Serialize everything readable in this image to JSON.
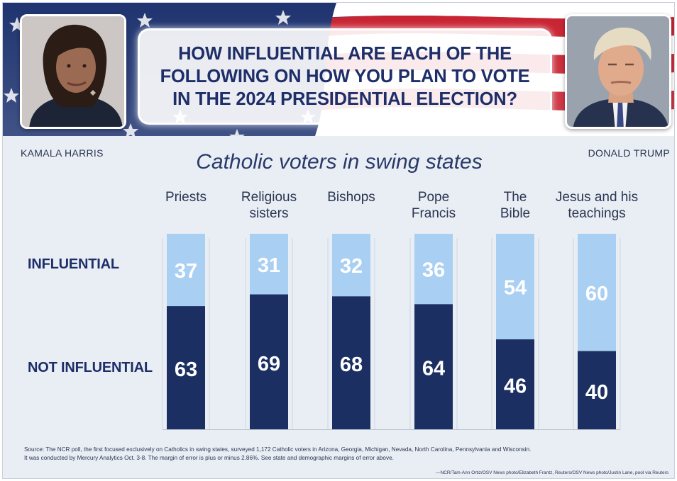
{
  "header": {
    "question_lines": [
      "HOW INFLUENTIAL ARE EACH OF THE",
      "FOLLOWING ON HOW YOU PLAN TO VOTE",
      "IN THE 2024 PRESIDENTIAL ELECTION?"
    ],
    "left_name": "KAMALA HARRIS",
    "right_name": "DONALD TRUMP"
  },
  "colors": {
    "influential": "#a9cff2",
    "not_influential": "#1b2f62",
    "navy_text": "#1d2e68",
    "flag_red": "#c8202f",
    "flag_blue": "#1c2f66"
  },
  "chart_data": {
    "type": "bar",
    "stacked": true,
    "percent": true,
    "subtitle": "Catholic voters in swing states",
    "categories": [
      [
        "Priests"
      ],
      [
        "Religious",
        "sisters"
      ],
      [
        "Bishops"
      ],
      [
        "Pope",
        "Francis"
      ],
      [
        "The",
        "Bible"
      ],
      [
        "Jesus and his",
        "teachings"
      ]
    ],
    "series": [
      {
        "name": "INFLUENTIAL",
        "values": [
          37,
          31,
          32,
          36,
          54,
          60
        ]
      },
      {
        "name": "NOT INFLUENTIAL",
        "values": [
          63,
          69,
          68,
          64,
          46,
          40
        ]
      }
    ],
    "ylim": [
      0,
      100
    ]
  },
  "footer": {
    "source_lines": [
      "Source: The NCR poll, the first focused exclusively on Catholics in swing states, surveyed 1,172 Catholic voters in Arizona, Georgia, Michigan, Nevada, North Carolina, Pennsylvania and Wisconsin.",
      "It was conducted by Mercury Analytics Oct. 3-8. The margin of error is plus or minus 2.86%. See state and demographic margins of error above."
    ],
    "credit": "—NCR/Tam-Ann Ortiz/OSV News photo/Elizabeth Frantz, Reuters/OSV News photo/Justin Lane, pool via Reuters"
  }
}
